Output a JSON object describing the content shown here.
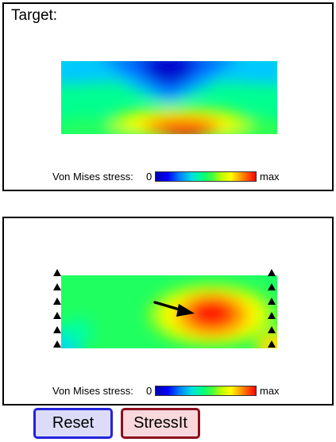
{
  "target_panel": {
    "title": "Target:"
  },
  "colorbar": {
    "label": "Von Mises stress:",
    "min_label": "0",
    "max_label": "max",
    "colors": [
      "#0000b0",
      "#0000ff",
      "#0080ff",
      "#00e0e0",
      "#00ff80",
      "#c0ff00",
      "#ffff00",
      "#ff9000",
      "#ff0000"
    ]
  },
  "simulation_panel": {
    "support_icon": "fixed-support-triangle",
    "load_icon": "force-arrow-icon"
  },
  "buttons": {
    "reset_label": "Reset",
    "stressit_label": "StressIt"
  },
  "colors": {
    "reset_bg": "#dcdcf8",
    "reset_border": "#2222dd",
    "stressit_bg": "#f8d8dc",
    "stressit_border": "#8b0d1c"
  }
}
